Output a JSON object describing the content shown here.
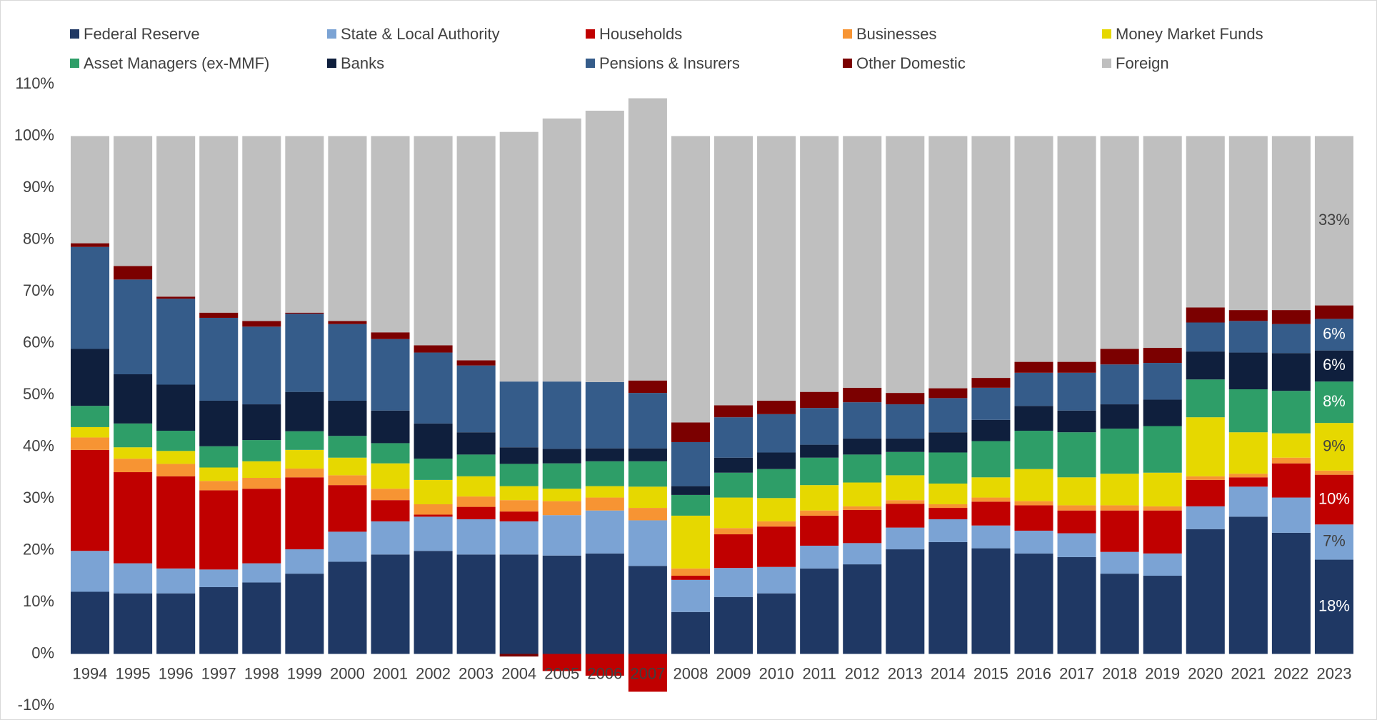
{
  "chart_data": {
    "type": "stacked_bar",
    "categories": [
      "1994",
      "1995",
      "1996",
      "1997",
      "1998",
      "1999",
      "2000",
      "2001",
      "2002",
      "2003",
      "2004",
      "2005",
      "2006",
      "2007",
      "2008",
      "2009",
      "2010",
      "2011",
      "2012",
      "2013",
      "2014",
      "2015",
      "2016",
      "2017",
      "2018",
      "2019",
      "2020",
      "2021",
      "2022",
      "2023"
    ],
    "ylim": [
      -10,
      110
    ],
    "yticks": [
      {
        "value": -10,
        "label": "-10%"
      },
      {
        "value": 0,
        "label": "0%"
      },
      {
        "value": 10,
        "label": "10%"
      },
      {
        "value": 20,
        "label": "20%"
      },
      {
        "value": 30,
        "label": "30%"
      },
      {
        "value": 40,
        "label": "40%"
      },
      {
        "value": 50,
        "label": "50%"
      },
      {
        "value": 60,
        "label": "60%"
      },
      {
        "value": 70,
        "label": "70%"
      },
      {
        "value": 80,
        "label": "80%"
      },
      {
        "value": 90,
        "label": "90%"
      },
      {
        "value": 100,
        "label": "100%"
      },
      {
        "value": 110,
        "label": "110%"
      }
    ],
    "legend": "top",
    "series": [
      {
        "name": "Federal Reserve",
        "color": "#1f3864",
        "values": [
          12.0,
          11.7,
          11.7,
          12.9,
          13.8,
          15.5,
          17.8,
          19.2,
          19.9,
          19.2,
          19.2,
          19.0,
          19.4,
          17.0,
          8.1,
          11.0,
          11.7,
          16.5,
          17.3,
          20.2,
          21.6,
          20.4,
          19.4,
          18.7,
          15.5,
          15.1,
          24.1,
          26.5,
          23.4,
          18.2
        ],
        "value_labels": [
          null,
          null,
          null,
          null,
          null,
          null,
          null,
          null,
          null,
          null,
          null,
          null,
          null,
          null,
          null,
          null,
          null,
          null,
          null,
          null,
          null,
          null,
          null,
          null,
          null,
          null,
          null,
          null,
          null,
          "18%"
        ]
      },
      {
        "name": "State & Local Authority",
        "color": "#7ba3d4",
        "values": [
          7.9,
          5.8,
          4.8,
          3.4,
          3.7,
          4.7,
          5.8,
          6.4,
          6.6,
          6.8,
          6.4,
          7.8,
          8.3,
          8.8,
          6.2,
          5.6,
          5.1,
          4.4,
          4.1,
          4.2,
          4.4,
          4.4,
          4.4,
          4.6,
          4.2,
          4.3,
          4.4,
          5.8,
          6.8,
          6.8
        ],
        "value_labels": [
          null,
          null,
          null,
          null,
          null,
          null,
          null,
          null,
          null,
          null,
          null,
          null,
          null,
          null,
          null,
          null,
          null,
          null,
          null,
          null,
          null,
          null,
          null,
          null,
          null,
          null,
          null,
          null,
          null,
          "7%"
        ]
      },
      {
        "name": "Households",
        "color": "#c00000",
        "values": [
          19.5,
          17.6,
          17.8,
          15.3,
          14.4,
          13.9,
          9.0,
          4.1,
          0.4,
          2.4,
          1.9,
          -3.3,
          -4.2,
          -7.3,
          0.8,
          6.5,
          7.8,
          5.8,
          6.4,
          4.6,
          2.2,
          4.6,
          4.9,
          4.4,
          8.0,
          8.3,
          5.1,
          1.8,
          6.6,
          9.6
        ],
        "value_labels": [
          null,
          null,
          null,
          null,
          null,
          null,
          null,
          null,
          null,
          null,
          null,
          null,
          null,
          null,
          null,
          null,
          null,
          null,
          null,
          null,
          null,
          null,
          null,
          null,
          null,
          null,
          null,
          null,
          null,
          "10%"
        ]
      },
      {
        "name": "Businesses",
        "color": "#f79433",
        "values": [
          2.4,
          2.6,
          2.4,
          1.8,
          2.1,
          1.7,
          1.9,
          2.2,
          2.0,
          2.0,
          2.2,
          2.7,
          2.5,
          2.4,
          1.4,
          1.2,
          1.0,
          1.0,
          0.7,
          0.7,
          0.7,
          0.8,
          0.8,
          1.0,
          1.0,
          0.8,
          0.7,
          0.7,
          1.1,
          0.8
        ]
      },
      {
        "name": "Money Market Funds",
        "color": "#e6d800",
        "values": [
          2.0,
          2.2,
          2.5,
          2.6,
          3.2,
          3.6,
          3.4,
          4.9,
          4.7,
          3.9,
          2.7,
          2.4,
          2.2,
          4.1,
          10.2,
          5.9,
          4.5,
          4.9,
          4.6,
          4.8,
          4.0,
          3.9,
          6.2,
          5.4,
          6.1,
          6.5,
          11.4,
          8.0,
          4.7,
          9.2
        ],
        "value_labels": [
          null,
          null,
          null,
          null,
          null,
          null,
          null,
          null,
          null,
          null,
          null,
          null,
          null,
          null,
          null,
          null,
          null,
          null,
          null,
          null,
          null,
          null,
          null,
          null,
          null,
          null,
          null,
          null,
          null,
          "9%"
        ]
      },
      {
        "name": "Asset Managers (ex-MMF)",
        "color": "#2e9e68",
        "values": [
          4.1,
          4.6,
          3.9,
          4.1,
          4.1,
          3.6,
          4.2,
          3.9,
          4.1,
          4.2,
          4.3,
          4.9,
          4.8,
          4.9,
          4.0,
          4.8,
          5.6,
          5.3,
          5.4,
          4.5,
          6.0,
          7.0,
          7.4,
          8.7,
          8.7,
          9.0,
          7.3,
          8.3,
          8.2,
          8.0
        ],
        "value_labels": [
          null,
          null,
          null,
          null,
          null,
          null,
          null,
          null,
          null,
          null,
          null,
          null,
          null,
          null,
          null,
          null,
          null,
          null,
          null,
          null,
          null,
          null,
          null,
          null,
          null,
          null,
          null,
          null,
          null,
          "8%"
        ]
      },
      {
        "name": "Banks",
        "color": "#0f1f3d",
        "values": [
          11.0,
          9.5,
          8.9,
          8.8,
          6.9,
          7.6,
          6.8,
          6.3,
          6.8,
          4.3,
          3.2,
          2.8,
          2.5,
          2.5,
          1.7,
          2.9,
          3.2,
          2.5,
          3.1,
          2.6,
          3.9,
          4.1,
          4.8,
          4.2,
          4.7,
          5.1,
          5.4,
          7.1,
          7.3,
          6.0
        ],
        "value_labels": [
          null,
          null,
          null,
          null,
          null,
          null,
          null,
          null,
          null,
          null,
          null,
          null,
          null,
          null,
          null,
          null,
          null,
          null,
          null,
          null,
          null,
          null,
          null,
          null,
          null,
          null,
          null,
          null,
          null,
          "6%"
        ]
      },
      {
        "name": "Pensions & Insurers",
        "color": "#355c8a",
        "values": [
          19.7,
          18.3,
          16.6,
          16.0,
          15.0,
          15.1,
          14.8,
          13.8,
          13.7,
          12.9,
          12.7,
          13.0,
          12.8,
          10.7,
          8.5,
          7.8,
          7.4,
          7.1,
          7.0,
          6.6,
          6.6,
          6.2,
          6.4,
          7.3,
          7.7,
          7.1,
          5.6,
          6.1,
          5.6,
          6.1
        ],
        "value_labels": [
          null,
          null,
          null,
          null,
          null,
          null,
          null,
          null,
          null,
          null,
          null,
          null,
          null,
          null,
          null,
          null,
          null,
          null,
          null,
          null,
          null,
          null,
          null,
          null,
          null,
          null,
          null,
          null,
          null,
          "6%"
        ]
      },
      {
        "name": "Other Domestic",
        "color": "#7b0000",
        "values": [
          0.7,
          2.6,
          0.4,
          1.0,
          1.1,
          0.2,
          0.6,
          1.3,
          1.4,
          1.0,
          -0.5,
          0,
          0,
          2.4,
          3.8,
          2.3,
          2.6,
          3.1,
          2.8,
          2.2,
          1.9,
          1.9,
          2.1,
          2.1,
          3.0,
          2.9,
          2.9,
          2.1,
          2.7,
          2.6
        ]
      },
      {
        "name": "Foreign",
        "color": "#bfbfbf",
        "values": [
          20.7,
          25.1,
          31.0,
          34.1,
          35.7,
          34.1,
          35.7,
          37.9,
          40.4,
          43.3,
          48.2,
          50.8,
          52.4,
          54.5,
          55.3,
          52.0,
          51.1,
          49.4,
          48.6,
          49.6,
          48.7,
          46.7,
          43.6,
          43.6,
          41.1,
          40.9,
          33.1,
          33.6,
          33.6,
          32.7
        ],
        "value_labels": [
          null,
          null,
          null,
          null,
          null,
          null,
          null,
          null,
          null,
          null,
          null,
          null,
          null,
          null,
          null,
          null,
          null,
          null,
          null,
          null,
          null,
          null,
          null,
          null,
          null,
          null,
          null,
          null,
          null,
          "33%"
        ]
      }
    ]
  }
}
